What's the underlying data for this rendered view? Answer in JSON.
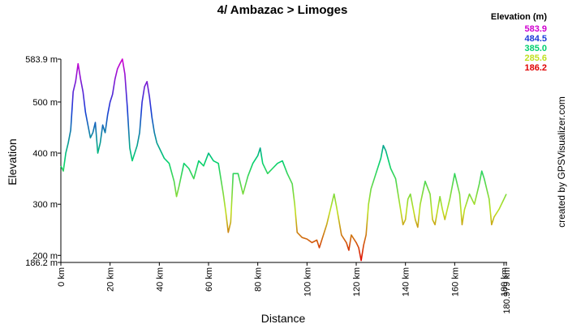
{
  "chart_data": {
    "type": "line",
    "title": "4/ Ambazac > Limoges",
    "x_label": "Distance",
    "y_label": "Elevation",
    "credit": "created by GPSVisualizer.com",
    "legend_title": "Elevation (m)",
    "color_scale": [
      {
        "value": 583.9,
        "color": "#d000d0"
      },
      {
        "value": 484.5,
        "color": "#1a3ad8"
      },
      {
        "value": 385,
        "label": "385.0",
        "color": "#00d070"
      },
      {
        "value": 285.6,
        "color": "#c0e020"
      },
      {
        "value": 186.2,
        "color": "#e00000"
      }
    ],
    "xlim": [
      0,
      180.979
    ],
    "ylim": [
      186.2,
      583.9
    ],
    "xticks": [
      {
        "value": 0,
        "label": "0 km"
      },
      {
        "value": 20,
        "label": "20 km"
      },
      {
        "value": 40,
        "label": "40 km"
      },
      {
        "value": 60,
        "label": "60 km"
      },
      {
        "value": 80,
        "label": "80 km"
      },
      {
        "value": 100,
        "label": "100 km"
      },
      {
        "value": 120,
        "label": "120 km"
      },
      {
        "value": 140,
        "label": "140 km"
      },
      {
        "value": 160,
        "label": "160 km"
      },
      {
        "value": 180,
        "label": "180 km"
      },
      {
        "value": 180.979,
        "label": "180.979 km"
      }
    ],
    "yticks": [
      {
        "value": 186.2,
        "label": "186.2 m"
      },
      {
        "value": 200,
        "label": "200 m"
      },
      {
        "value": 300,
        "label": "300 m"
      },
      {
        "value": 400,
        "label": "400 m"
      },
      {
        "value": 500,
        "label": "500 m"
      },
      {
        "value": 583.9,
        "label": "583.9 m"
      }
    ],
    "x": [
      0,
      1,
      2,
      3,
      4,
      5,
      6,
      7,
      8,
      9,
      10,
      11,
      12,
      13,
      14,
      15,
      16,
      17,
      18,
      19,
      20,
      21,
      22,
      23,
      24,
      25,
      26,
      27,
      28,
      29,
      30,
      31,
      32,
      33,
      34,
      35,
      36,
      37,
      38,
      39,
      40,
      42,
      44,
      46,
      47,
      48,
      50,
      52,
      54,
      56,
      58,
      60,
      62,
      64,
      66,
      67,
      68,
      69,
      70,
      72,
      73,
      74,
      76,
      78,
      80,
      81,
      82,
      84,
      86,
      88,
      90,
      92,
      94,
      95,
      96,
      98,
      100,
      102,
      104,
      105,
      106,
      108,
      110,
      111,
      112,
      114,
      116,
      117,
      118,
      120,
      121,
      122,
      123,
      124,
      125,
      126,
      128,
      130,
      131,
      132,
      134,
      136,
      138,
      139,
      140,
      141,
      142,
      144,
      145,
      146,
      148,
      150,
      151,
      152,
      154,
      155,
      156,
      158,
      160,
      162,
      163,
      164,
      166,
      168,
      170,
      171,
      172,
      174,
      175,
      176,
      178,
      180,
      180.979
    ],
    "values": [
      375,
      365,
      400,
      420,
      445,
      520,
      540,
      575,
      545,
      520,
      480,
      455,
      430,
      440,
      460,
      400,
      420,
      455,
      440,
      475,
      500,
      515,
      545,
      565,
      575,
      583.9,
      555,
      490,
      410,
      385,
      400,
      415,
      440,
      500,
      530,
      540,
      510,
      470,
      440,
      420,
      410,
      390,
      380,
      345,
      315,
      335,
      380,
      370,
      350,
      385,
      375,
      400,
      385,
      380,
      320,
      285,
      245,
      265,
      360,
      360,
      340,
      320,
      355,
      380,
      395,
      410,
      380,
      360,
      370,
      380,
      385,
      360,
      340,
      300,
      245,
      235,
      232,
      225,
      230,
      215,
      230,
      260,
      300,
      320,
      295,
      240,
      225,
      210,
      240,
      225,
      215,
      190,
      220,
      240,
      300,
      330,
      360,
      390,
      415,
      405,
      370,
      350,
      290,
      260,
      270,
      310,
      320,
      270,
      255,
      300,
      345,
      320,
      270,
      260,
      315,
      290,
      270,
      310,
      360,
      320,
      260,
      290,
      320,
      300,
      340,
      365,
      350,
      310,
      260,
      275,
      290,
      310,
      320
    ]
  }
}
